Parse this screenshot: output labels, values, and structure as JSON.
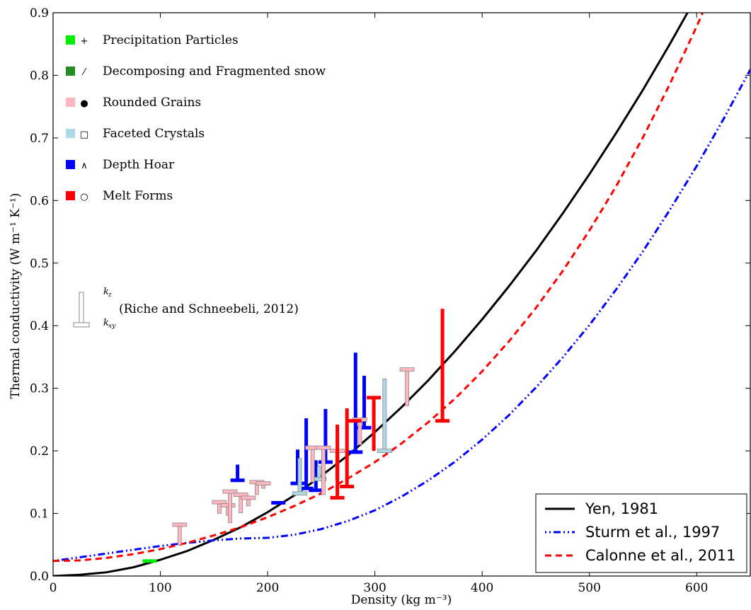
{
  "chart_data": {
    "type": "line",
    "xlabel": "Density (kg m⁻³)",
    "ylabel": "Thermal conductivity (W m⁻¹ K⁻¹)",
    "xlim": [
      0,
      650
    ],
    "ylim": [
      0,
      0.9
    ],
    "x_ticks": [
      0,
      100,
      200,
      300,
      400,
      500,
      600
    ],
    "y_ticks": [
      0.0,
      0.1,
      0.2,
      0.3,
      0.4,
      0.5,
      0.6,
      0.7,
      0.8,
      0.9
    ],
    "x_tick_labels": [
      "0",
      "100",
      "200",
      "300",
      "400",
      "500",
      "600"
    ],
    "y_tick_labels": [
      "0.0",
      "0.1",
      "0.2",
      "0.3",
      "0.4",
      "0.5",
      "0.6",
      "0.7",
      "0.8",
      "0.9"
    ],
    "grid": false,
    "legend_placement": "lower-right",
    "series": [
      {
        "name": "Yen, 1981",
        "color": "#000000",
        "style": "solid",
        "x": [
          0,
          25,
          50,
          75,
          100,
          125,
          150,
          175,
          200,
          225,
          250,
          275,
          300,
          325,
          350,
          375,
          400,
          425,
          450,
          475,
          500,
          525,
          550,
          575,
          600,
          617
        ],
        "y": [
          0.0,
          0.002,
          0.006,
          0.014,
          0.026,
          0.04,
          0.058,
          0.078,
          0.102,
          0.129,
          0.16,
          0.193,
          0.23,
          0.27,
          0.313,
          0.36,
          0.41,
          0.463,
          0.519,
          0.579,
          0.642,
          0.708,
          0.777,
          0.85,
          0.926,
          0.98
        ]
      },
      {
        "name": "Sturm et al., 1997",
        "color": "#0000ff",
        "style": "dash-dot",
        "x": [
          0,
          25,
          50,
          75,
          100,
          125,
          150,
          175,
          200,
          225,
          250,
          275,
          300,
          325,
          350,
          375,
          400,
          425,
          450,
          475,
          500,
          525,
          550,
          575,
          600,
          625,
          650
        ],
        "y": [
          0.024,
          0.03,
          0.036,
          0.042,
          0.048,
          0.053,
          0.057,
          0.06,
          0.061,
          0.066,
          0.075,
          0.088,
          0.105,
          0.127,
          0.153,
          0.183,
          0.218,
          0.257,
          0.301,
          0.349,
          0.401,
          0.458,
          0.519,
          0.585,
          0.655,
          0.73,
          0.809
        ]
      },
      {
        "name": "Calonne et al., 2011",
        "color": "#ff0000",
        "style": "dashed",
        "x": [
          0,
          25,
          50,
          75,
          100,
          125,
          150,
          175,
          200,
          225,
          250,
          275,
          300,
          325,
          350,
          375,
          400,
          425,
          450,
          475,
          500,
          525,
          550,
          575,
          600,
          617
        ],
        "y": [
          0.024,
          0.025,
          0.029,
          0.035,
          0.043,
          0.053,
          0.065,
          0.078,
          0.094,
          0.112,
          0.132,
          0.156,
          0.182,
          0.212,
          0.246,
          0.284,
          0.327,
          0.375,
          0.428,
          0.487,
          0.552,
          0.623,
          0.701,
          0.786,
          0.878,
          0.945
        ]
      }
    ],
    "bars": [
      {
        "type": "PP",
        "x": 90,
        "kz": 0.026,
        "kxy": 0.024
      },
      {
        "type": "RG",
        "x": 118,
        "kz": 0.05,
        "kxy": 0.082
      },
      {
        "type": "RG",
        "x": 155,
        "kz": 0.1,
        "kxy": 0.118
      },
      {
        "type": "RG",
        "x": 163,
        "kz": 0.097,
        "kxy": 0.113
      },
      {
        "type": "RG",
        "x": 165,
        "kz": 0.085,
        "kxy": 0.135
      },
      {
        "type": "RG",
        "x": 175,
        "kz": 0.101,
        "kxy": 0.13
      },
      {
        "type": "RG",
        "x": 182,
        "kz": 0.112,
        "kxy": 0.125
      },
      {
        "type": "RG",
        "x": 190,
        "kz": 0.13,
        "kxy": 0.15
      },
      {
        "type": "RG",
        "x": 196,
        "kz": 0.14,
        "kxy": 0.148
      },
      {
        "type": "DH",
        "x": 172,
        "kz": 0.178,
        "kxy": 0.153
      },
      {
        "type": "DH",
        "x": 210,
        "kz": 0.119,
        "kxy": 0.117
      },
      {
        "type": "DH",
        "x": 228,
        "kz": 0.202,
        "kxy": 0.148
      },
      {
        "type": "DH",
        "x": 236,
        "kz": 0.252,
        "kxy": 0.14
      },
      {
        "type": "DH",
        "x": 245,
        "kz": 0.185,
        "kxy": 0.137
      },
      {
        "type": "DH",
        "x": 254,
        "kz": 0.267,
        "kxy": 0.182
      },
      {
        "type": "DH",
        "x": 282,
        "kz": 0.357,
        "kxy": 0.198
      },
      {
        "type": "DH",
        "x": 290,
        "kz": 0.32,
        "kxy": 0.237
      },
      {
        "type": "FC",
        "x": 230,
        "kz": 0.188,
        "kxy": 0.132
      },
      {
        "type": "FC",
        "x": 248,
        "kz": 0.176,
        "kxy": 0.155
      },
      {
        "type": "FC",
        "x": 309,
        "kz": 0.315,
        "kxy": 0.2
      },
      {
        "type": "RG",
        "x": 242,
        "kz": 0.15,
        "kxy": 0.205
      },
      {
        "type": "RG",
        "x": 252,
        "kz": 0.13,
        "kxy": 0.205
      },
      {
        "type": "RG",
        "x": 265,
        "kz": 0.153,
        "kxy": 0.2
      },
      {
        "type": "RG",
        "x": 286,
        "kz": 0.21,
        "kxy": 0.25
      },
      {
        "type": "RG",
        "x": 330,
        "kz": 0.272,
        "kxy": 0.33
      },
      {
        "type": "MF",
        "x": 265,
        "kz": 0.242,
        "kxy": 0.125
      },
      {
        "type": "MF",
        "x": 274,
        "kz": 0.268,
        "kxy": 0.143
      },
      {
        "type": "MF",
        "x": 281,
        "kz": 0.248,
        "kxy": 0.248
      },
      {
        "type": "MF",
        "x": 299,
        "kz": 0.2,
        "kxy": 0.285
      },
      {
        "type": "MF",
        "x": 363,
        "kz": 0.427,
        "kxy": 0.248
      }
    ],
    "grain_legend": [
      {
        "key": "PP",
        "label": "Precipitation Particles",
        "color": "#00ee00",
        "symbol": "+"
      },
      {
        "key": "DF",
        "label": "Decomposing and Fragmented snow",
        "color": "#228b22",
        "symbol": "⁄"
      },
      {
        "key": "RG",
        "label": "Rounded Grains",
        "color": "#ffb6c1",
        "symbol": "●"
      },
      {
        "key": "FC",
        "label": "Faceted Crystals",
        "color": "#add8e6",
        "symbol": "□"
      },
      {
        "key": "DH",
        "label": "Depth Hoar",
        "color": "#0000ff",
        "symbol": "∧"
      },
      {
        "key": "MF",
        "label": "Melt Forms",
        "color": "#ff0000",
        "symbol": "○"
      }
    ],
    "bar_legend": {
      "label": "(Riche and Schneebeli, 2012)",
      "kz": "k",
      "kz_sub": "z",
      "kxy": "k",
      "kxy_sub": "xy"
    }
  }
}
